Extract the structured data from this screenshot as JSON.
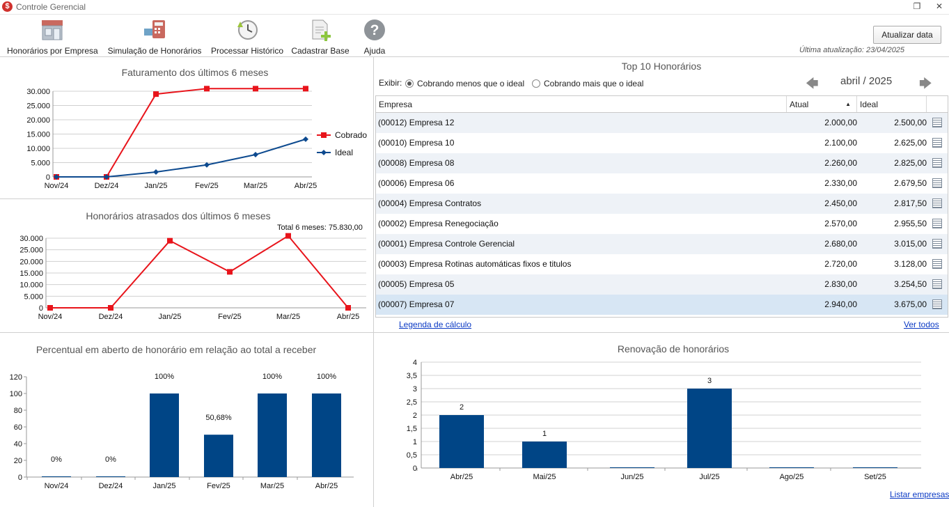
{
  "window": {
    "title": "Controle Gerencial",
    "app_icon": "$"
  },
  "toolbar": {
    "items": [
      {
        "label": "Honorários por Empresa",
        "icon": "storefront-icon"
      },
      {
        "label": "Simulação de Honorários",
        "icon": "calculator-icon"
      },
      {
        "label": "Processar Histórico",
        "icon": "clock-history-icon"
      },
      {
        "label": "Cadastrar Base",
        "icon": "document-add-icon"
      },
      {
        "label": "Ajuda",
        "icon": "help-icon"
      }
    ],
    "refresh_label": "Atualizar data",
    "last_update": "Última atualização: 23/04/2025"
  },
  "faturamento": {
    "title": "Faturamento dos últimos 6 meses",
    "chart_data": {
      "type": "line",
      "categories": [
        "Nov/24",
        "Dez/24",
        "Jan/25",
        "Fev/25",
        "Mar/25",
        "Abr/25"
      ],
      "series": [
        {
          "name": "Cobrado",
          "color": "#e8141b",
          "values": [
            0,
            0,
            29000,
            30900,
            30900,
            30900
          ]
        },
        {
          "name": "Ideal",
          "color": "#0d4a8f",
          "values": [
            0,
            0,
            1700,
            4200,
            7800,
            13200
          ]
        }
      ],
      "yticks": [
        "30.000",
        "25.000",
        "20.000",
        "15.000",
        "10.000",
        "5.000",
        "0"
      ],
      "ylim": [
        0,
        30000
      ],
      "legend": "right",
      "grid": true
    }
  },
  "atrasados": {
    "title": "Honorários atrasados dos últimos 6 meses",
    "total_label": "Total 6 meses: 75.830,00",
    "chart_data": {
      "type": "line",
      "categories": [
        "Nov/24",
        "Dez/24",
        "Jan/25",
        "Fev/25",
        "Mar/25",
        "Abr/25"
      ],
      "series": [
        {
          "color": "#e8141b",
          "values": [
            0,
            0,
            28900,
            15500,
            31000,
            0
          ]
        }
      ],
      "yticks": [
        "30.000",
        "25.000",
        "20.000",
        "15.000",
        "10.000",
        "5.000",
        "0"
      ],
      "ylim": [
        0,
        30000
      ],
      "grid": true
    }
  },
  "percentual": {
    "title": "Percentual em aberto de honorário em relação ao total a receber",
    "chart_data": {
      "type": "bar",
      "categories": [
        "Nov/24",
        "Dez/24",
        "Jan/25",
        "Fev/25",
        "Mar/25",
        "Abr/25"
      ],
      "values": [
        0,
        0,
        100,
        50.68,
        100,
        100
      ],
      "data_labels": [
        "0%",
        "0%",
        "100%",
        "50,68%",
        "100%",
        "100%"
      ],
      "yticks": [
        "120",
        "100",
        "80",
        "60",
        "40",
        "20",
        "0"
      ],
      "ylim": [
        0,
        120
      ],
      "color": "#004586",
      "grid": false
    }
  },
  "top10": {
    "title": "Top 10 Honorários",
    "exibir_label": "Exibir:",
    "radio_less": "Cobrando menos que o ideal",
    "radio_more": "Cobrando mais que o ideal",
    "month": "abril / 2025",
    "columns": {
      "empresa": "Empresa",
      "atual": "Atual",
      "ideal": "Ideal"
    },
    "rows": [
      {
        "empresa": "(00012) Empresa 12",
        "atual": "2.000,00",
        "ideal": "2.500,00"
      },
      {
        "empresa": "(00010) Empresa 10",
        "atual": "2.100,00",
        "ideal": "2.625,00"
      },
      {
        "empresa": "(00008) Empresa 08",
        "atual": "2.260,00",
        "ideal": "2.825,00"
      },
      {
        "empresa": "(00006) Empresa 06",
        "atual": "2.330,00",
        "ideal": "2.679,50"
      },
      {
        "empresa": "(00004) Empresa Contratos",
        "atual": "2.450,00",
        "ideal": "2.817,50"
      },
      {
        "empresa": "(00002) Empresa Renegociação",
        "atual": "2.570,00",
        "ideal": "2.955,50"
      },
      {
        "empresa": "(00001) Empresa Controle Gerencial",
        "atual": "2.680,00",
        "ideal": "3.015,00"
      },
      {
        "empresa": "(00003) Empresa Rotinas automáticas fixos e titulos",
        "atual": "2.720,00",
        "ideal": "3.128,00"
      },
      {
        "empresa": "(00005) Empresa 05",
        "atual": "2.830,00",
        "ideal": "3.254,50"
      },
      {
        "empresa": "(00007) Empresa 07",
        "atual": "2.940,00",
        "ideal": "3.675,00"
      }
    ],
    "legend_link": "Legenda de cálculo",
    "see_all_link": "Ver todos"
  },
  "renovacao": {
    "title": "Renovação de honorários",
    "list_link": "Listar empresas",
    "chart_data": {
      "type": "bar",
      "categories": [
        "Abr/25",
        "Mai/25",
        "Jun/25",
        "Jul/25",
        "Ago/25",
        "Set/25"
      ],
      "values": [
        2,
        1,
        0,
        3,
        0,
        0
      ],
      "data_labels": [
        "2",
        "1",
        "",
        "3",
        "",
        ""
      ],
      "yticks": [
        "4",
        "3,5",
        "3",
        "2,5",
        "2",
        "1,5",
        "1",
        "0,5",
        "0"
      ],
      "ylim": [
        0,
        4
      ],
      "color": "#004586",
      "grid": true
    }
  }
}
